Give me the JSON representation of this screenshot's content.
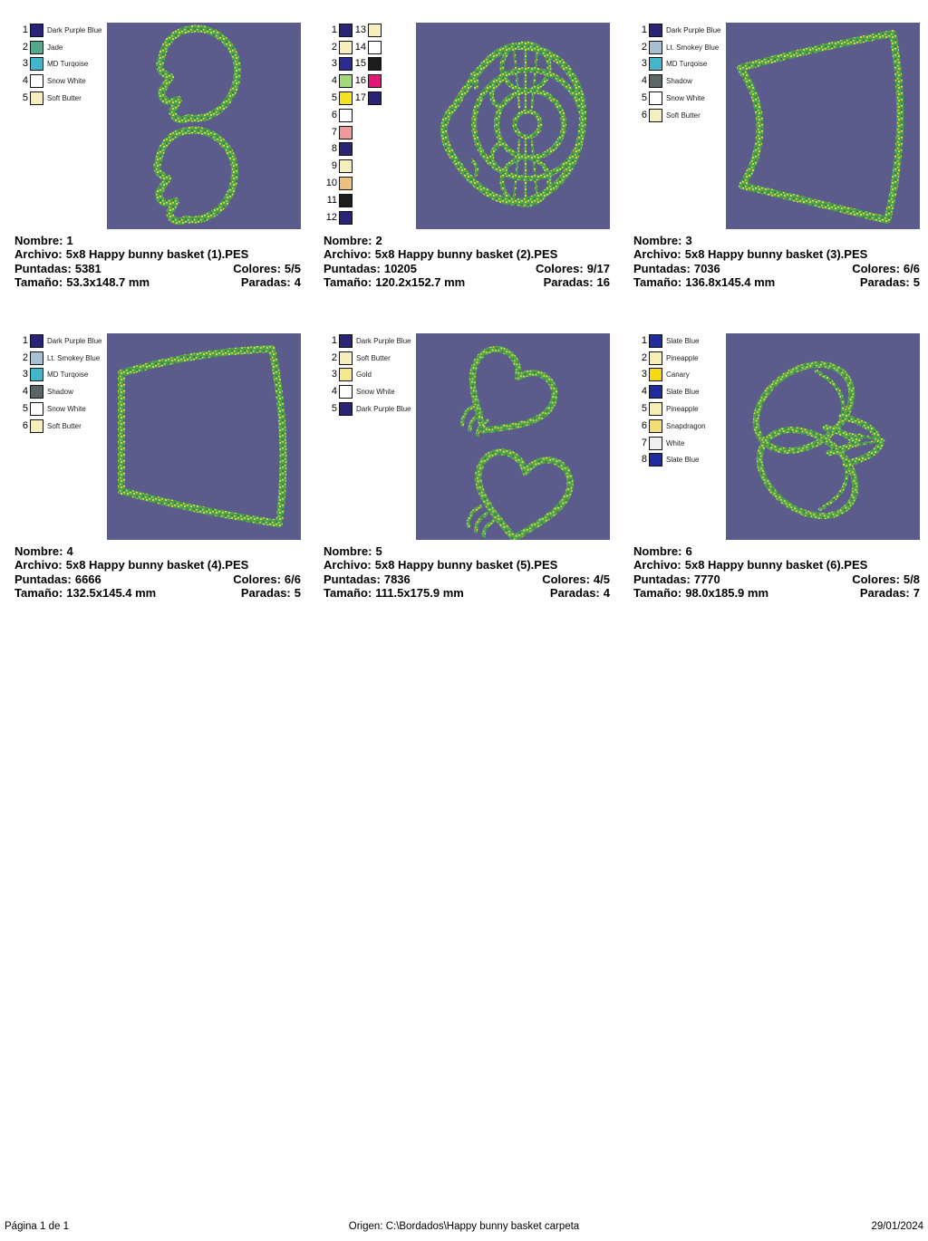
{
  "labels": {
    "nombre": "Nombre:",
    "archivo": "Archivo:",
    "puntadas": "Puntadas:",
    "colores": "Colores:",
    "tamano": "Tamaño:",
    "paradas": "Paradas:"
  },
  "style": {
    "preview_bg": "#5b5c8b",
    "stitch_green": "#4fa14f",
    "stitch_yellow": "#d6d83e",
    "stitch_yellow2": "#e9e04a",
    "stitch_dark": "#3a7f46"
  },
  "footer": {
    "page": "Página 1 de 1",
    "origin": "Origen: C:\\Bordados\\Happy bunny basket carpeta",
    "date": "29/01/2024"
  },
  "panels": [
    {
      "nombre": "1",
      "archivo": "5x8 Happy bunny basket (1).PES",
      "puntadas": "5381",
      "colores": "5/5",
      "tamano": "53.3x148.7 mm",
      "paradas": "4",
      "threads": [
        {
          "n": "1",
          "name": "Dark Purple Blue",
          "hex": "#2a2476"
        },
        {
          "n": "2",
          "name": "Jade",
          "hex": "#57a68e"
        },
        {
          "n": "3",
          "name": "MD Turqoise",
          "hex": "#43b7c9"
        },
        {
          "n": "4",
          "name": "Snow White",
          "hex": "#ffffff"
        },
        {
          "n": "5",
          "name": "Soft Butter",
          "hex": "#f6efbd"
        }
      ]
    },
    {
      "nombre": "2",
      "archivo": "5x8 Happy bunny basket (2).PES",
      "puntadas": "10205",
      "colores": "9/17",
      "tamano": "120.2x152.7 mm",
      "paradas": "16",
      "threads": [
        {
          "n": "1",
          "name": "",
          "hex": "#2a2476"
        },
        {
          "n": "2",
          "name": "",
          "hex": "#f6efbd"
        },
        {
          "n": "3",
          "name": "",
          "hex": "#2c2a8f"
        },
        {
          "n": "4",
          "name": "",
          "hex": "#a5d77b"
        },
        {
          "n": "5",
          "name": "",
          "hex": "#f2e21f"
        },
        {
          "n": "6",
          "name": "",
          "hex": "#ffffff"
        },
        {
          "n": "7",
          "name": "",
          "hex": "#ef9a9a"
        },
        {
          "n": "8",
          "name": "",
          "hex": "#2a2476"
        },
        {
          "n": "9",
          "name": "",
          "hex": "#f6efbd"
        },
        {
          "n": "10",
          "name": "",
          "hex": "#eac17d"
        },
        {
          "n": "11",
          "name": "",
          "hex": "#1c1c1c"
        },
        {
          "n": "12",
          "name": "",
          "hex": "#2a2476"
        },
        {
          "n": "13",
          "name": "",
          "hex": "#f6efbd"
        },
        {
          "n": "14",
          "name": "",
          "hex": "#ffffff"
        },
        {
          "n": "15",
          "name": "",
          "hex": "#1c1c1c"
        },
        {
          "n": "16",
          "name": "",
          "hex": "#e0187a"
        },
        {
          "n": "17",
          "name": "",
          "hex": "#2a2476"
        }
      ]
    },
    {
      "nombre": "3",
      "archivo": "5x8 Happy bunny basket (3).PES",
      "puntadas": "7036",
      "colores": "6/6",
      "tamano": "136.8x145.4 mm",
      "paradas": "5",
      "threads": [
        {
          "n": "1",
          "name": "Dark Purple Blue",
          "hex": "#2a2476"
        },
        {
          "n": "2",
          "name": "Lt. Smokey Blue",
          "hex": "#a9bfd2"
        },
        {
          "n": "3",
          "name": "MD Turqoise",
          "hex": "#43b7c9"
        },
        {
          "n": "4",
          "name": "Shadow",
          "hex": "#5c6667"
        },
        {
          "n": "5",
          "name": "Snow White",
          "hex": "#ffffff"
        },
        {
          "n": "6",
          "name": "Soft Butter",
          "hex": "#f6efbd"
        }
      ]
    },
    {
      "nombre": "4",
      "archivo": "5x8 Happy bunny basket (4).PES",
      "puntadas": "6666",
      "colores": "6/6",
      "tamano": "132.5x145.4 mm",
      "paradas": "5",
      "threads": [
        {
          "n": "1",
          "name": "Dark Purple Blue",
          "hex": "#2a2476"
        },
        {
          "n": "2",
          "name": "Lt. Smokey Blue",
          "hex": "#a9bfd2"
        },
        {
          "n": "3",
          "name": "MD Turqoise",
          "hex": "#43b7c9"
        },
        {
          "n": "4",
          "name": "Shadow",
          "hex": "#5c6667"
        },
        {
          "n": "5",
          "name": "Snow White",
          "hex": "#ffffff"
        },
        {
          "n": "6",
          "name": "Soft Butter",
          "hex": "#f6efbd"
        }
      ]
    },
    {
      "nombre": "5",
      "archivo": "5x8 Happy bunny basket (5).PES",
      "puntadas": "7836",
      "colores": "4/5",
      "tamano": "111.5x175.9 mm",
      "paradas": "4",
      "threads": [
        {
          "n": "1",
          "name": "Dark Purple Blue",
          "hex": "#2a2476"
        },
        {
          "n": "2",
          "name": "Soft Butter",
          "hex": "#f6efbd"
        },
        {
          "n": "3",
          "name": "Gold",
          "hex": "#f4e98a"
        },
        {
          "n": "4",
          "name": "Snow White",
          "hex": "#ffffff"
        },
        {
          "n": "5",
          "name": "Dark Purple Blue",
          "hex": "#2a2476"
        }
      ]
    },
    {
      "nombre": "6",
      "archivo": "5x8 Happy bunny basket (6).PES",
      "puntadas": "7770",
      "colores": "5/8",
      "tamano": "98.0x185.9 mm",
      "paradas": "7",
      "threads": [
        {
          "n": "1",
          "name": "Slate Blue",
          "hex": "#1f2b9e"
        },
        {
          "n": "2",
          "name": "Pineapple",
          "hex": "#f6efb4"
        },
        {
          "n": "3",
          "name": "Canary",
          "hex": "#f6d813"
        },
        {
          "n": "4",
          "name": "Slate Blue",
          "hex": "#1f2b9e"
        },
        {
          "n": "5",
          "name": "Pineapple",
          "hex": "#f6efb4"
        },
        {
          "n": "6",
          "name": "Snapdragon",
          "hex": "#f3df76"
        },
        {
          "n": "7",
          "name": "White",
          "hex": "#f0f0ee"
        },
        {
          "n": "8",
          "name": "Slate Blue",
          "hex": "#1f2b9e"
        }
      ]
    }
  ]
}
